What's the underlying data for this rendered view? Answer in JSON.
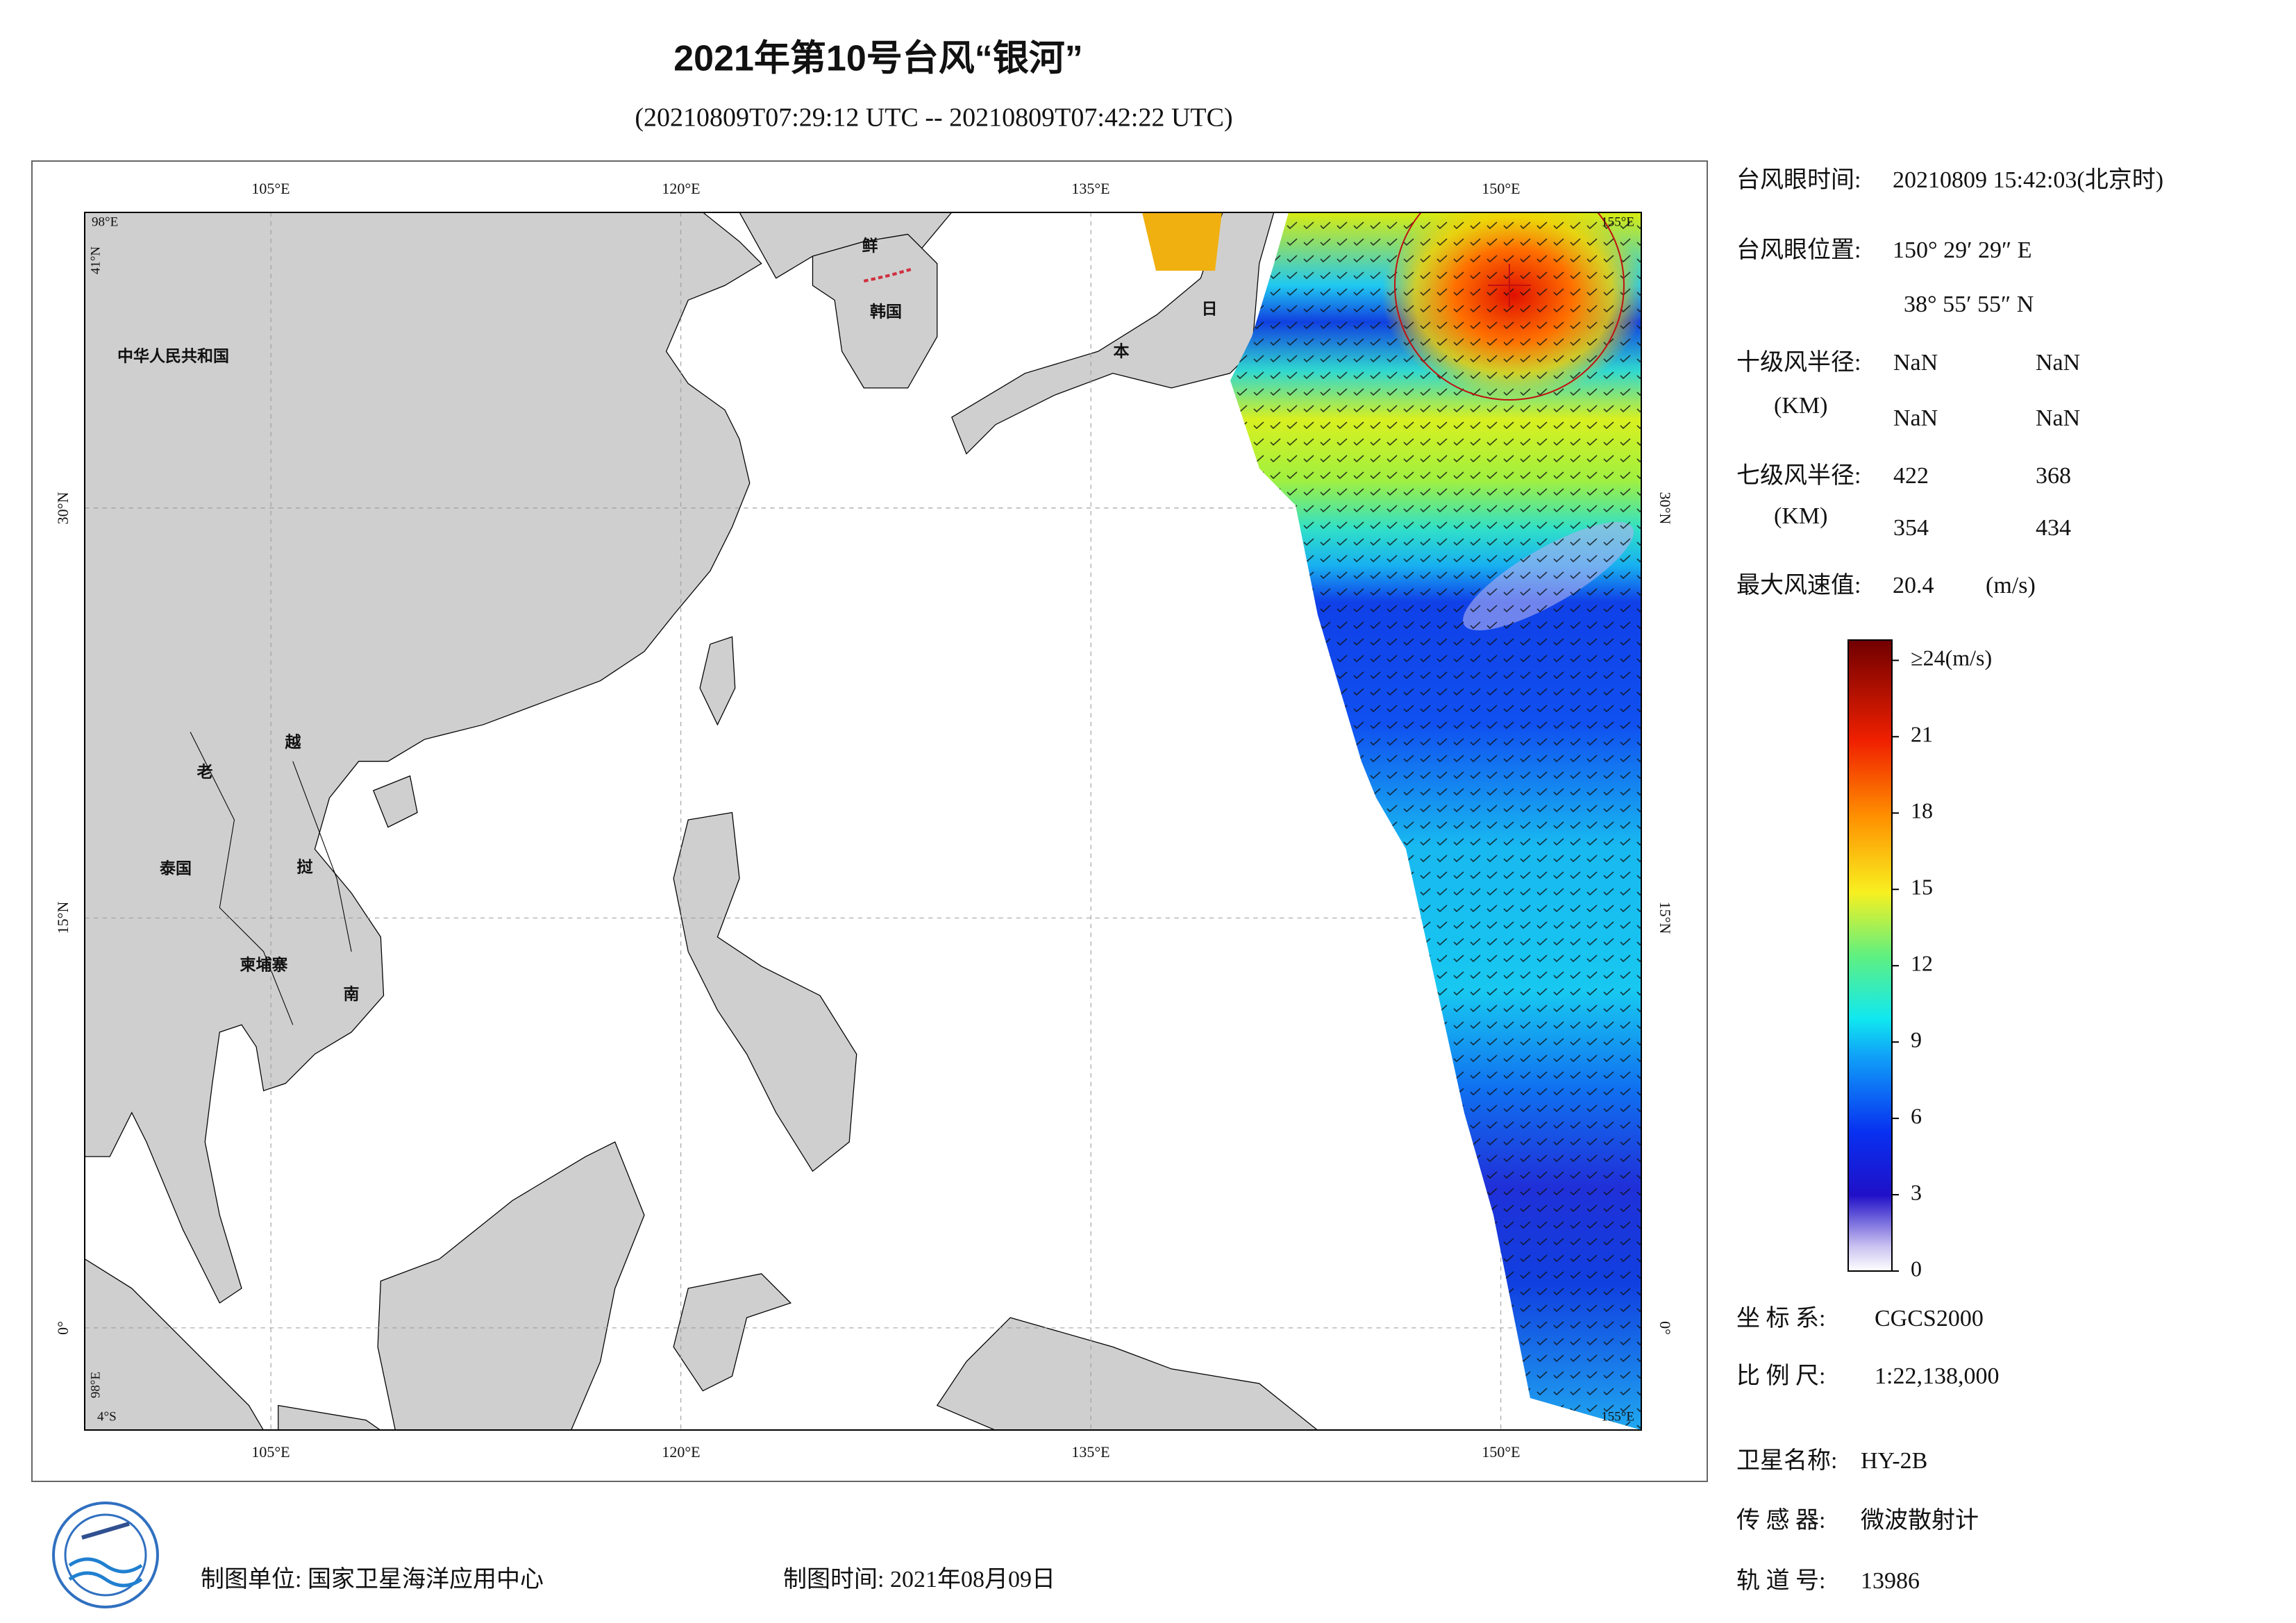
{
  "title": "2021年第10号台风“银河”",
  "subtitle": "(20210809T07:29:12 UTC -- 20210809T07:42:22 UTC)",
  "map": {
    "lon_labels": [
      "105°E",
      "120°E",
      "135°E",
      "150°E"
    ],
    "lat_labels": [
      "30°N",
      "15°N",
      "0°"
    ],
    "corner_labels": {
      "top_left": "98°E",
      "left_top": "41°N",
      "top_right": "155°E",
      "bottom_left": "4°S",
      "left_bottom": "98°E",
      "bottom_right": "155°E"
    },
    "country_labels": [
      "中华人民共和国",
      "鲜",
      "韩国",
      "日",
      "本",
      "老",
      "越",
      "泰国",
      "挝",
      "柬埔寨",
      "南"
    ]
  },
  "info": {
    "eye_time": {
      "label": "台风眼时间:",
      "value": "20210809 15:42:03(北京时)"
    },
    "eye_position": {
      "label": "台风眼位置:",
      "lon": "150° 29′ 29″ E",
      "lat": "38° 55′ 55″ N"
    },
    "r10": {
      "label": "十级风半径:",
      "unit": "(KM)",
      "values": [
        "NaN",
        "NaN",
        "NaN",
        "NaN"
      ]
    },
    "r7": {
      "label": "七级风半径:",
      "unit": "(KM)",
      "values": [
        422,
        368,
        354,
        434
      ]
    },
    "max_wind": {
      "label": "最大风速值:",
      "value": 20.4,
      "unit": "(m/s)"
    }
  },
  "colorbar": {
    "lim": [
      0,
      24.8
    ],
    "ticks": [
      {
        "value": 24,
        "label": "≥24(m/s)"
      },
      21,
      18,
      15,
      12,
      9,
      6,
      3,
      0
    ]
  },
  "meta": {
    "crs": {
      "label": "坐 标 系:",
      "value": "CGCS2000"
    },
    "scale": {
      "label": "比 例 尺:",
      "value": "1:22,138,000"
    },
    "satellite": {
      "label": "卫星名称:",
      "value": "HY-2B"
    },
    "sensor": {
      "label": "传 感 器:",
      "value": "微波散射计"
    },
    "orbit": {
      "label": "轨 道 号:",
      "value": "13986"
    }
  },
  "footer": {
    "unit": "制图单位: 国家卫星海洋应用中心",
    "date": "制图时间: 2021年08月09日"
  }
}
